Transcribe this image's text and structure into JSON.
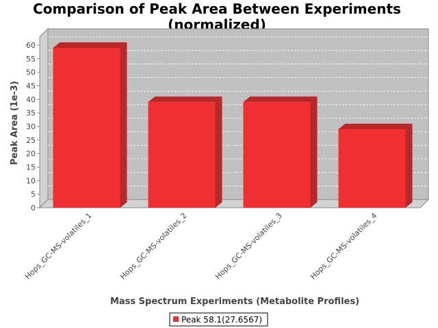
{
  "chart_data": {
    "type": "bar",
    "title_line1": "Comparison of Peak Area Between Experiments",
    "title_line2": "(normalized)",
    "xlabel": "Mass Spectrum Experiments (Metabolite Profiles)",
    "ylabel": "Peak Area (1e-3)",
    "categories": [
      "Hops_GC-MS-volatiles_1",
      "Hops_GC-MS-volatiles_2",
      "Hops_GC-MS-volatiles_3",
      "Hops_GC-MS-volatiles_4"
    ],
    "series": [
      {
        "name": "Peak 58.1(27.6567)",
        "values": [
          59,
          39,
          39,
          29
        ]
      }
    ],
    "ylim": [
      0,
      63
    ],
    "yticks": [
      0,
      5,
      10,
      15,
      20,
      25,
      30,
      35,
      40,
      45,
      50,
      55,
      60
    ],
    "grid": true,
    "legend": "bottom",
    "colors": {
      "bar_front": "#f03030",
      "bar_top": "#b82828",
      "bar_side": "#b82828",
      "plot_bg": "#c0c0c0",
      "plot_wall": "#d2d2d2",
      "grid": "#ffffff"
    }
  }
}
